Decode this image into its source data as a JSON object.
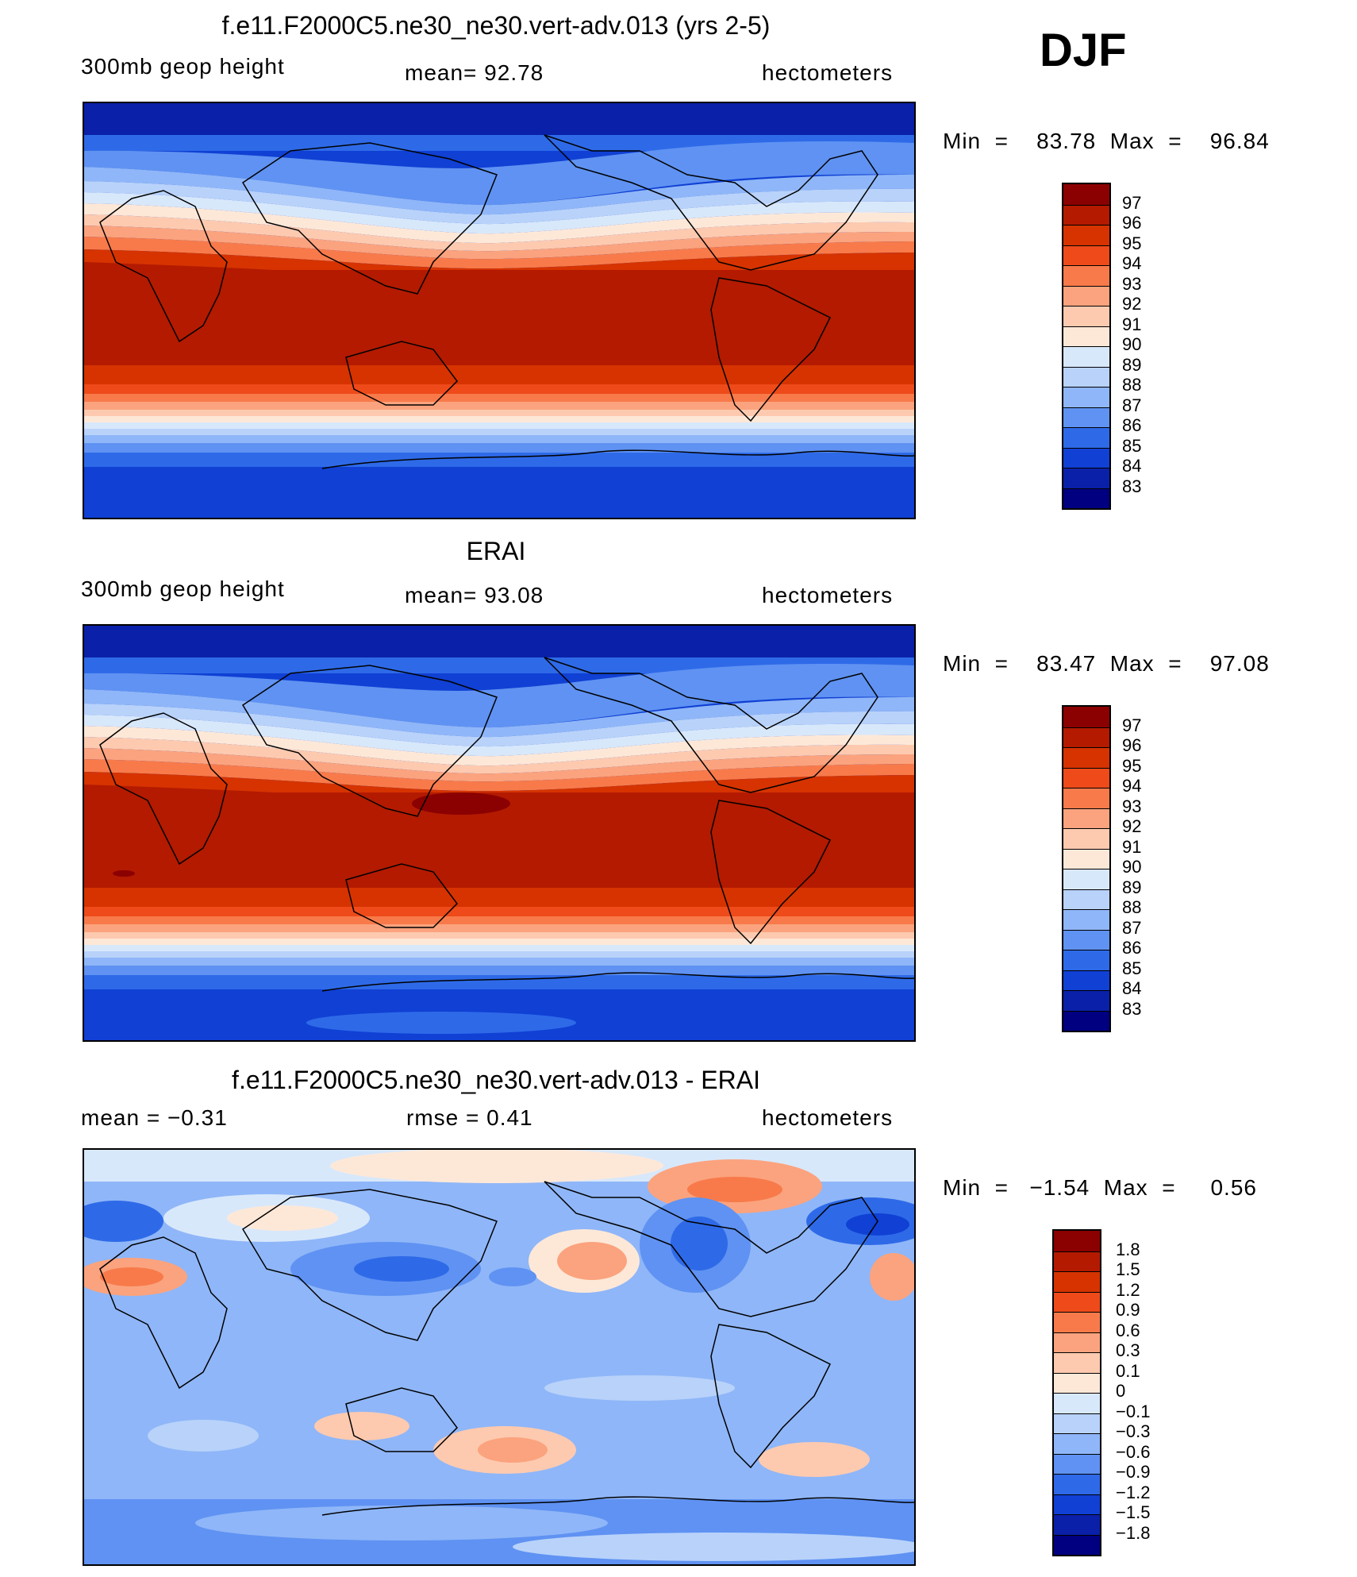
{
  "season": "DJF",
  "panels": [
    {
      "title": "f.e11.F2000C5.ne30_ne30.vert-adv.013 (yrs 2-5)",
      "left_text": "300mb  geop  height",
      "center_text": "mean=   92.78",
      "right_text": "hectometers",
      "minmax_text": "Min  =    83.78  Max  =    96.84",
      "colorbar_labels": [
        "97",
        "96",
        "95",
        "94",
        "93",
        "92",
        "91",
        "90",
        "89",
        "88",
        "87",
        "86",
        "85",
        "84",
        "83"
      ],
      "colors": [
        "#8b0000",
        "#b31a00",
        "#d63300",
        "#ee4a1a",
        "#f87a4a",
        "#fba37e",
        "#fdcab0",
        "#fde8d8",
        "#d8e8fb",
        "#b8d2fa",
        "#8fb6f8",
        "#5f92f2",
        "#2e6ae8",
        "#1040d4",
        "#0a20a8",
        "#000080"
      ]
    },
    {
      "title": "ERAI",
      "left_text": "300mb  geop  height",
      "center_text": "mean=   93.08",
      "right_text": "hectometers",
      "minmax_text": "Min  =    83.47  Max  =    97.08",
      "colorbar_labels": [
        "97",
        "96",
        "95",
        "94",
        "93",
        "92",
        "91",
        "90",
        "89",
        "88",
        "87",
        "86",
        "85",
        "84",
        "83"
      ],
      "colors": [
        "#8b0000",
        "#b31a00",
        "#d63300",
        "#ee4a1a",
        "#f87a4a",
        "#fba37e",
        "#fdcab0",
        "#fde8d8",
        "#d8e8fb",
        "#b8d2fa",
        "#8fb6f8",
        "#5f92f2",
        "#2e6ae8",
        "#1040d4",
        "#0a20a8",
        "#000080"
      ]
    },
    {
      "title": "f.e11.F2000C5.ne30_ne30.vert-adv.013 - ERAI",
      "left_text": "mean  =    −0.31",
      "center_text": "rmse  =     0.41",
      "right_text": "hectometers",
      "minmax_text": "Min  =   −1.54  Max  =     0.56",
      "colorbar_labels": [
        "1.8",
        "1.5",
        "1.2",
        "0.9",
        "0.6",
        "0.3",
        "0.1",
        "0",
        "−0.1",
        "−0.3",
        "−0.6",
        "−0.9",
        "−1.2",
        "−1.5",
        "−1.8"
      ],
      "colors": [
        "#8b0000",
        "#b31a00",
        "#d63300",
        "#ee4a1a",
        "#f87a4a",
        "#fba37e",
        "#fdcab0",
        "#fde8d8",
        "#d8e8fb",
        "#b8d2fa",
        "#8fb6f8",
        "#5f92f2",
        "#2e6ae8",
        "#1040d4",
        "#0a20a8",
        "#000080"
      ]
    }
  ]
}
